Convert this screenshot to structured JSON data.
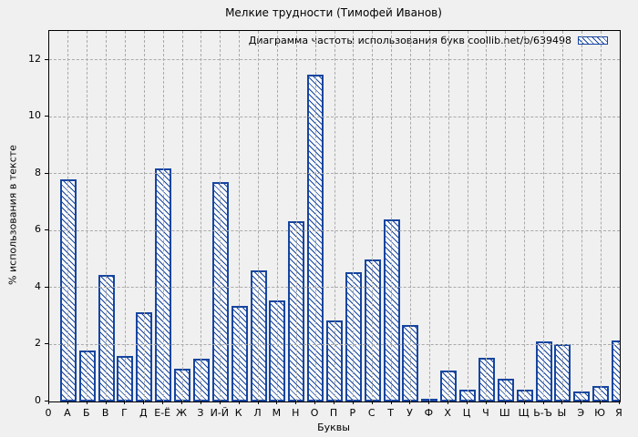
{
  "window": {
    "title": "Мелкие трудности (Тимофей Иванов)"
  },
  "chart_data": {
    "type": "bar",
    "title": "Мелкие трудности (Тимофей Иванов)",
    "legend": "Диаграмма частоты использования букв coollib.net/b/639498",
    "legend_position": "top-right",
    "xlabel": "Буквы",
    "ylabel": "% использования в тексте",
    "x_origin_label": "0",
    "categories": [
      "А",
      "Б",
      "В",
      "Г",
      "Д",
      "Е-Ё",
      "Ж",
      "З",
      "И-Й",
      "К",
      "Л",
      "М",
      "Н",
      "О",
      "П",
      "Р",
      "С",
      "Т",
      "У",
      "Ф",
      "Х",
      "Ц",
      "Ч",
      "Ш",
      "Щ",
      "Ь-Ъ",
      "Ы",
      "Э",
      "Ю",
      "Я"
    ],
    "values": [
      7.8,
      1.8,
      4.45,
      1.6,
      3.15,
      8.2,
      1.15,
      1.5,
      7.7,
      3.35,
      4.6,
      3.55,
      6.35,
      11.5,
      2.85,
      4.55,
      5.0,
      6.4,
      2.7,
      0.1,
      1.1,
      0.4,
      1.55,
      0.8,
      0.4,
      2.1,
      2.0,
      0.35,
      0.55,
      2.15
    ],
    "yticks": [
      0,
      2,
      4,
      6,
      8,
      10,
      12
    ],
    "ylim": [
      0,
      13.02
    ],
    "grid": true,
    "bar_style": "diagonal-hatch",
    "colors": {
      "bar": "#16459f",
      "background": "#f0f0f0",
      "grid": "#aaaaaa",
      "axis": "#000000",
      "text": "#000000"
    }
  }
}
